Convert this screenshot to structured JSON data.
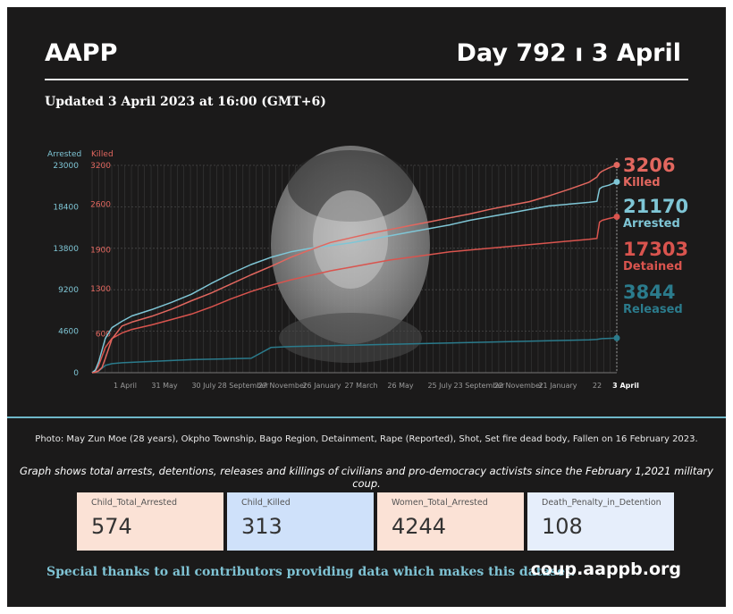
{
  "header": {
    "title": "AAPP",
    "day_label": "Day 792 ı 3 April",
    "updated": "Updated 3 April 2023 at 16:00 (GMT+6)"
  },
  "chart_data": {
    "type": "line",
    "left_axis": {
      "label": "Arrested",
      "ticks": [
        0,
        4600,
        9200,
        13800,
        18400,
        23000
      ],
      "tick_labels": [
        "0",
        "4600",
        "9200",
        "13800",
        "18400",
        "23000"
      ],
      "ylim": [
        0,
        23000
      ],
      "color": "#7fc6d6"
    },
    "right_axis": {
      "label": "Killed",
      "ticks": [
        0,
        600,
        1300,
        1900,
        2600,
        3200
      ],
      "tick_labels": [
        "",
        "600",
        "1300",
        "1900",
        "2600",
        "3200"
      ],
      "color": "#e2675f"
    },
    "x_tick_labels": [
      "1 April",
      "31 May",
      "30 July",
      "28 September",
      "27 November",
      "26 January",
      "27 March",
      "26 May",
      "25 July",
      "23 September",
      "22 November",
      "21 January",
      "22",
      "3 April"
    ],
    "x": [
      0,
      5,
      10,
      15,
      20,
      30,
      45,
      60,
      90,
      120,
      150,
      180,
      210,
      240,
      270,
      300,
      330,
      360,
      390,
      420,
      450,
      480,
      510,
      540,
      570,
      600,
      630,
      660,
      690,
      720,
      750,
      762,
      766,
      770,
      780,
      792
    ],
    "series": [
      {
        "name": "Killed",
        "axis": "right",
        "color": "#e2675f",
        "values": [
          0,
          5,
          30,
          80,
          220,
          520,
          720,
          780,
          870,
          980,
          1110,
          1230,
          1370,
          1510,
          1640,
          1780,
          1900,
          2010,
          2080,
          2150,
          2210,
          2270,
          2330,
          2390,
          2450,
          2520,
          2580,
          2640,
          2730,
          2830,
          2940,
          3020,
          3080,
          3110,
          3160,
          3206
        ]
      },
      {
        "name": "Arrested",
        "axis": "left",
        "color": "#7fc6d6",
        "values": [
          0,
          300,
          1200,
          2500,
          3800,
          5000,
          5700,
          6300,
          7000,
          7800,
          8700,
          9900,
          11000,
          12000,
          12800,
          13400,
          13800,
          14100,
          14400,
          14800,
          15200,
          15600,
          16000,
          16400,
          16900,
          17300,
          17700,
          18100,
          18500,
          18700,
          18900,
          19000,
          20400,
          20600,
          20800,
          21170
        ]
      },
      {
        "name": "Detained",
        "axis": "left",
        "color": "#d9544e",
        "values": [
          0,
          200,
          800,
          1800,
          2800,
          3800,
          4400,
          4800,
          5300,
          5900,
          6500,
          7300,
          8200,
          9000,
          9700,
          10300,
          10800,
          11300,
          11700,
          12100,
          12500,
          12800,
          13100,
          13400,
          13600,
          13800,
          14000,
          14200,
          14400,
          14600,
          14800,
          14900,
          16700,
          16900,
          17100,
          17303
        ]
      },
      {
        "name": "Released",
        "axis": "left",
        "color": "#2b7b8c",
        "values": [
          0,
          50,
          200,
          500,
          800,
          1000,
          1100,
          1150,
          1250,
          1350,
          1450,
          1500,
          1550,
          1600,
          2800,
          2900,
          2950,
          3000,
          3050,
          3100,
          3150,
          3200,
          3250,
          3300,
          3350,
          3400,
          3450,
          3500,
          3550,
          3600,
          3650,
          3700,
          3750,
          3780,
          3810,
          3844
        ]
      }
    ],
    "end_labels": [
      {
        "value": "3206",
        "name": "Killed",
        "color": "#e2675f"
      },
      {
        "value": "21170",
        "name": "Arrested",
        "color": "#7fc6d6"
      },
      {
        "value": "17303",
        "name": "Detained",
        "color": "#d9544e"
      },
      {
        "value": "3844",
        "name": "Released",
        "color": "#2b7b8c"
      }
    ],
    "grid": true
  },
  "photo_caption": "Photo: May Zun Moe (28 years), Okpho Township, Bago Region, Detainment, Rape (Reported), Shot, Set fire dead body, Fallen on 16 February 2023.",
  "graph_note": "Graph shows total arrests, detentions, releases and killings of civilians and pro-democracy activists since the February 1,2021 military coup.",
  "stats": [
    {
      "label": "Child_Total_Arrested",
      "value": "574",
      "bg": "#fbe2d6"
    },
    {
      "label": "Child_Killed",
      "value": "313",
      "bg": "#cfe1fa"
    },
    {
      "label": "Women_Total_Arrested",
      "value": "4244",
      "bg": "#fbe2d6"
    },
    {
      "label": "Death_Penalty_in_Detention",
      "value": "108",
      "bg": "#e6eefb"
    }
  ],
  "footer": {
    "thanks": "Special thanks to all contributors providing data which makes this dataset.",
    "url": "coup.aappb.org"
  }
}
